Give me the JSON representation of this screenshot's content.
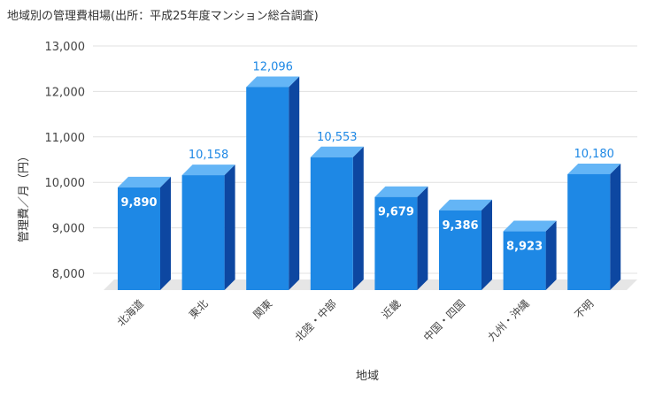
{
  "chart_data": {
    "type": "bar",
    "title": "地域別の管理費相場(出所：平成25年度マンション総合調査)",
    "xlabel": "地域",
    "ylabel": "管理費／月（円）",
    "categories": [
      "北海道",
      "東北",
      "関東",
      "北陸・中部",
      "近畿",
      "中国・四国",
      "九州・沖縄",
      "不明"
    ],
    "values": [
      9890,
      10158,
      12096,
      10553,
      9679,
      9386,
      8923,
      10180
    ],
    "value_labels": [
      "9,890",
      "10,158",
      "12,096",
      "10,553",
      "9,679",
      "9,386",
      "8,923",
      "10,180"
    ],
    "label_inside": [
      true,
      false,
      false,
      false,
      true,
      true,
      true,
      false
    ],
    "ylim": [
      8000,
      13000
    ],
    "yticks": [
      8000,
      9000,
      10000,
      11000,
      12000,
      13000
    ],
    "ytick_labels": [
      "8,000",
      "9,000",
      "10,000",
      "11,000",
      "12,000",
      "13,000"
    ],
    "grid": true,
    "colors": {
      "front": "#1e88e5",
      "top": "#64b5f6",
      "side": "#0d47a1",
      "floor": "#e6e6e6",
      "grid": "#e0e0e0"
    }
  }
}
